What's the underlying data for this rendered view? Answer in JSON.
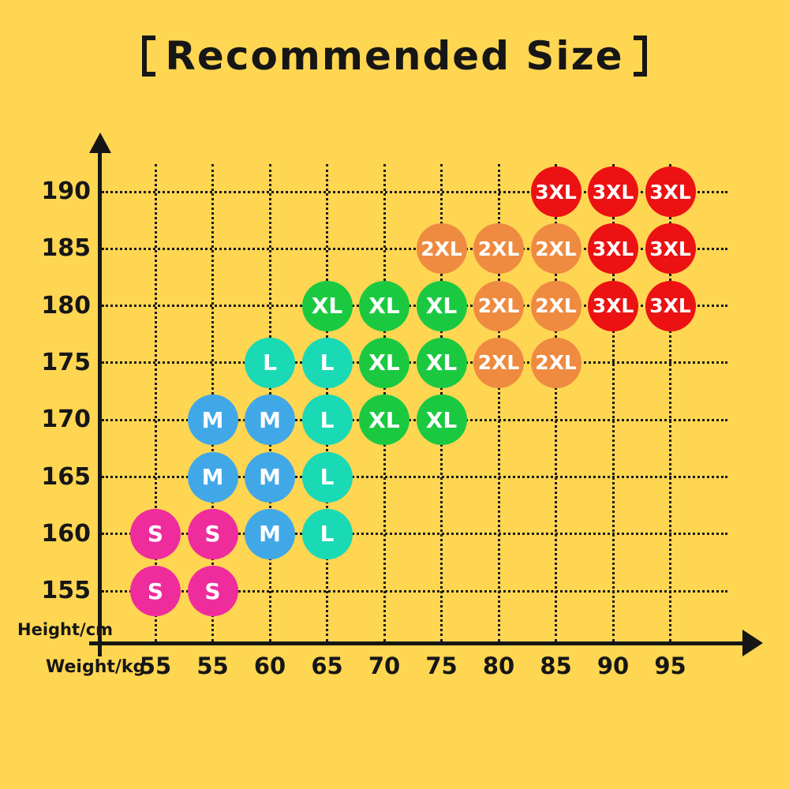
{
  "page": {
    "background_color": "#FFD652"
  },
  "chart_data": {
    "type": "scatter",
    "title": "【Recommended Size】",
    "title_display": "Recommended Size",
    "xlabel": "Weight/kg",
    "ylabel": "Height/cm",
    "x_tick_labels": [
      "55",
      "55",
      "60",
      "65",
      "70",
      "75",
      "80",
      "85",
      "90",
      "95"
    ],
    "y_tick_labels": [
      "190",
      "185",
      "180",
      "175",
      "170",
      "165",
      "160",
      "155"
    ],
    "grid": true,
    "legend_position": "none",
    "size_colors": {
      "S": "#EF2C9C",
      "M": "#41A8E8",
      "L": "#1AD9B5",
      "XL": "#1BC941",
      "2XL": "#EE8B40",
      "3XL": "#EC1113"
    },
    "matrix_rows_top_to_bottom": [
      {
        "height": "190",
        "cells": [
          null,
          null,
          null,
          null,
          null,
          null,
          null,
          "3XL",
          "3XL",
          "3XL"
        ]
      },
      {
        "height": "185",
        "cells": [
          null,
          null,
          null,
          null,
          null,
          "2XL",
          "2XL",
          "2XL",
          "3XL",
          "3XL"
        ]
      },
      {
        "height": "180",
        "cells": [
          null,
          null,
          null,
          "XL",
          "XL",
          "XL",
          "2XL",
          "2XL",
          "3XL",
          "3XL"
        ]
      },
      {
        "height": "175",
        "cells": [
          null,
          null,
          "L",
          "L",
          "XL",
          "XL",
          "2XL",
          "2XL",
          null,
          null
        ]
      },
      {
        "height": "170",
        "cells": [
          null,
          "M",
          "M",
          "L",
          "XL",
          "XL",
          null,
          null,
          null,
          null
        ]
      },
      {
        "height": "165",
        "cells": [
          null,
          "M",
          "M",
          "L",
          null,
          null,
          null,
          null,
          null,
          null
        ]
      },
      {
        "height": "160",
        "cells": [
          "S",
          "S",
          "M",
          "L",
          null,
          null,
          null,
          null,
          null,
          null
        ]
      },
      {
        "height": "155",
        "cells": [
          "S",
          "S",
          null,
          null,
          null,
          null,
          null,
          null,
          null,
          null
        ]
      }
    ]
  }
}
